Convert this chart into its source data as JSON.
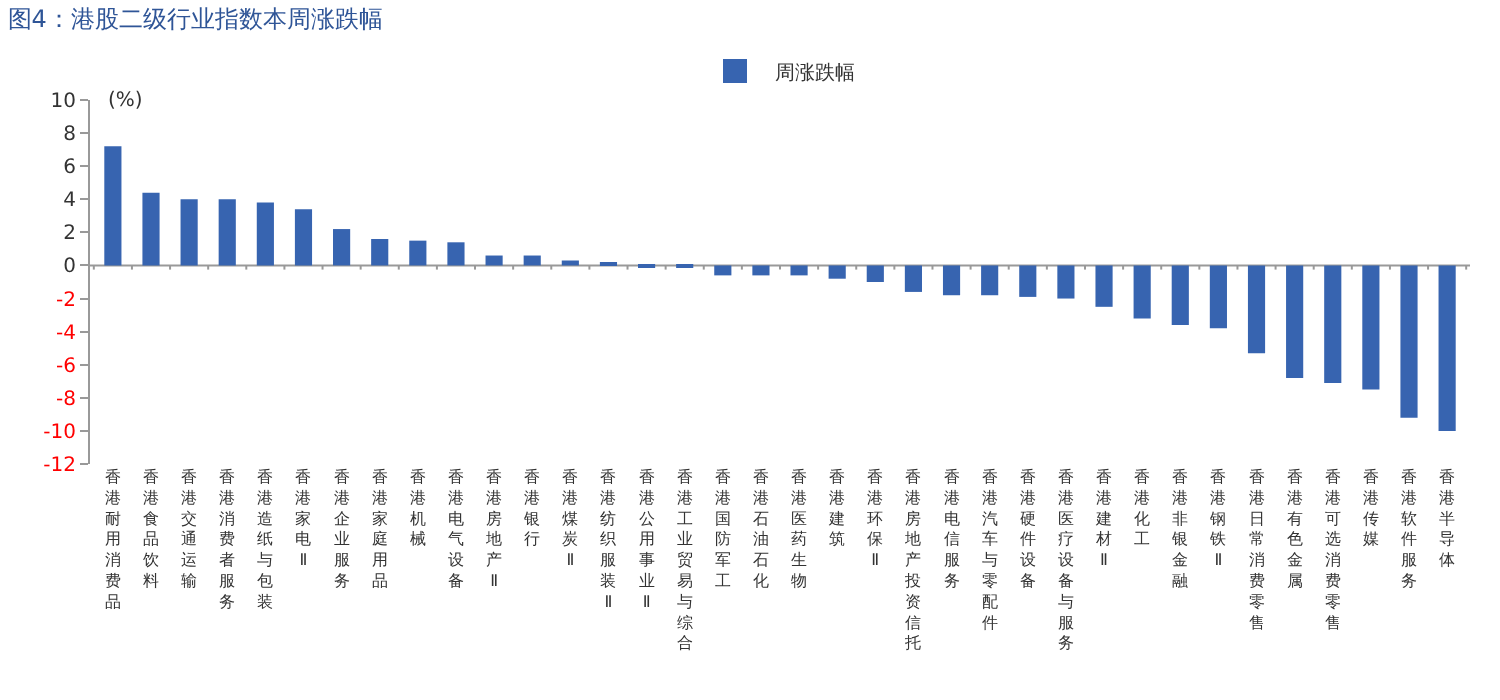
{
  "chart_data": {
    "type": "bar",
    "title": "图4：港股二级行业指数本周涨跌幅",
    "categories": [
      "香港耐用消费品",
      "香港食品饮料",
      "香港交通运输",
      "香港消费者服务",
      "香港造纸与包装",
      "香港家电Ⅱ",
      "香港企业服务",
      "香港家庭用品",
      "香港机械",
      "香港电气设备",
      "香港房地产Ⅱ",
      "香港银行",
      "香港煤炭Ⅱ",
      "香港纺织服装Ⅱ",
      "香港公用事业Ⅱ",
      "香港工业贸易与综合",
      "香港国防军工",
      "香港石油石化",
      "香港医药生物",
      "香港建筑",
      "香港环保Ⅱ",
      "香港房地产投资信托",
      "香港电信服务",
      "香港汽车与零配件",
      "香港硬件设备",
      "香港医疗设备与服务",
      "香港建材Ⅱ",
      "香港化工",
      "香港非银金融",
      "香港钢铁Ⅱ",
      "香港日常消费零售",
      "香港有色金属",
      "香港可选消费零售",
      "香港传媒",
      "香港软件服务",
      "香港半导体"
    ],
    "series": [
      {
        "name": "周涨跌幅",
        "color": "#3764b0",
        "values": [
          7.2,
          4.4,
          4.0,
          4.0,
          3.8,
          3.4,
          2.2,
          1.6,
          1.5,
          1.4,
          0.6,
          0.6,
          0.3,
          0.2,
          -0.1,
          -0.1,
          -0.6,
          -0.6,
          -0.6,
          -0.8,
          -1.0,
          -1.6,
          -1.8,
          -1.8,
          -1.9,
          -2.0,
          -2.5,
          -3.2,
          -3.6,
          -3.8,
          -5.3,
          -6.8,
          -7.1,
          -7.5,
          -9.2,
          -10.0
        ]
      }
    ],
    "ylabel": "(%)",
    "ylim": [
      -12,
      10
    ],
    "yticks": [
      -12,
      -10,
      -8,
      -6,
      -4,
      -2,
      0,
      2,
      4,
      6,
      8,
      10
    ],
    "legend": "top"
  }
}
